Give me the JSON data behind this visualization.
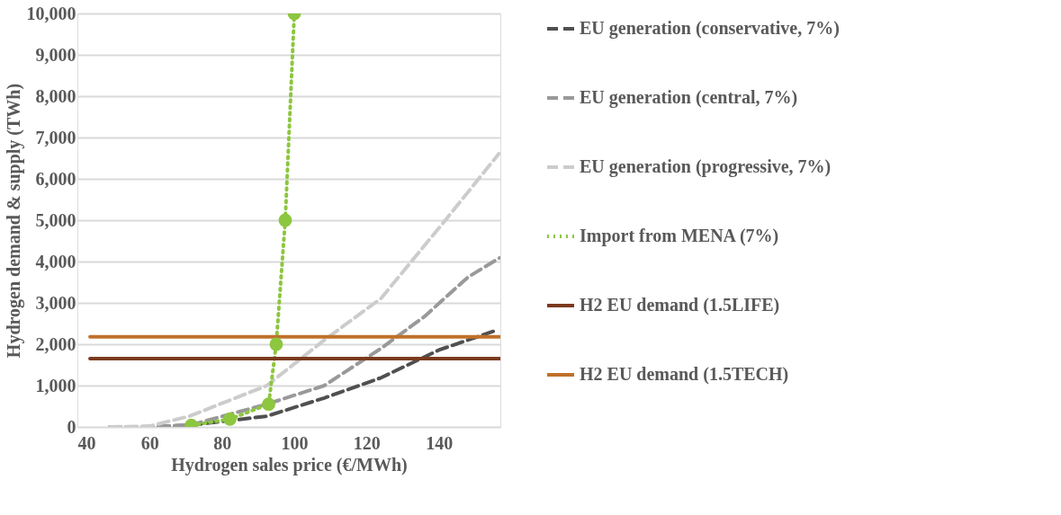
{
  "chart_data": {
    "type": "line",
    "xlabel": "Hydrogen sales price (€/MWh)",
    "ylabel": "Hydrogen demand & supply (TWh)",
    "xlim": [
      40,
      157
    ],
    "xticks": [
      40,
      60,
      80,
      100,
      120,
      140
    ],
    "ylim": [
      0,
      10000
    ],
    "yticks": [
      0,
      {
        "value": 1000,
        "label": "1,000"
      },
      {
        "value": 2000,
        "label": "2,000"
      },
      {
        "value": 3000,
        "label": "3,000"
      },
      {
        "value": 4000,
        "label": "4,000"
      },
      {
        "value": 5000,
        "label": "5,000"
      },
      {
        "value": 6000,
        "label": "6,000"
      },
      {
        "value": 7000,
        "label": "7,000"
      },
      {
        "value": 8000,
        "label": "8,000"
      },
      {
        "value": 9000,
        "label": "9,000"
      },
      {
        "value": 10000,
        "label": "10,000"
      }
    ],
    "grid": "y",
    "legend": "right",
    "series": [
      {
        "name": "EU generation (conservative, 7%)",
        "color": "#505050",
        "line_style": "dashed",
        "x": [
          49,
          60,
          71,
          92.4,
          108.3,
          124,
          140,
          156.3
        ],
        "values": [
          0,
          0,
          40,
          260,
          700,
          1190,
          1860,
          2350
        ]
      },
      {
        "name": "EU generation (central, 7%)",
        "color": "#999999",
        "line_style": "dashed",
        "x": [
          49,
          60,
          71,
          92.4,
          108.3,
          124,
          136,
          148,
          156.8
        ],
        "values": [
          0,
          0,
          40,
          550,
          1000,
          1900,
          2670,
          3620,
          4090
        ]
      },
      {
        "name": "EU generation (progressive, 7%)",
        "color": "#cccccc",
        "line_style": "dashed",
        "x": [
          49,
          60,
          71,
          92.4,
          108.3,
          124,
          141.6,
          156.6
        ],
        "values": [
          0,
          20,
          260,
          1000,
          2100,
          3110,
          4980,
          6610
        ]
      },
      {
        "name": "Import from MENA (7%)",
        "color": "#8dc63f",
        "line_style": "dotted",
        "marker": "circle",
        "x": [
          71.5,
          82.2,
          92.9,
          95,
          97.5,
          100
        ],
        "values": [
          40,
          190,
          550,
          2000,
          5000,
          10000
        ]
      },
      {
        "name": "H2 EU demand (1.5LIFE)",
        "color": "#7b3a1e",
        "line_style": "solid",
        "x": [
          43.5,
          157
        ],
        "values": [
          1650,
          1650
        ]
      },
      {
        "name": "H2 EU demand (1.5TECH)",
        "color": "#c0712a",
        "line_style": "solid",
        "x": [
          43.5,
          157
        ],
        "values": [
          2180,
          2180
        ]
      }
    ]
  }
}
